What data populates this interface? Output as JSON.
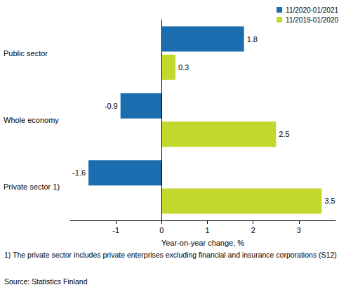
{
  "chart_data": {
    "type": "bar",
    "orientation": "horizontal",
    "categories": [
      "Public sector",
      "Whole economy",
      "Private sector 1)"
    ],
    "series": [
      {
        "name": "11/2020-01/2021",
        "color": "#1a6eb0",
        "values": [
          1.8,
          -0.9,
          -1.6
        ]
      },
      {
        "name": "11/2019-01/2020",
        "color": "#c2d82d",
        "values": [
          0.3,
          2.5,
          3.5
        ]
      }
    ],
    "x_label": "Year-on-year change, %",
    "xlim": [
      -2,
      3.8
    ],
    "xticks": [
      -1,
      0,
      1,
      2,
      3
    ],
    "grid": false,
    "legend": "top-right",
    "data_labels": true,
    "notes": [
      "1) The private sector includes private enterprises excluding financial and insurance corporations (S12)",
      "Source: Statistics Finland"
    ]
  }
}
